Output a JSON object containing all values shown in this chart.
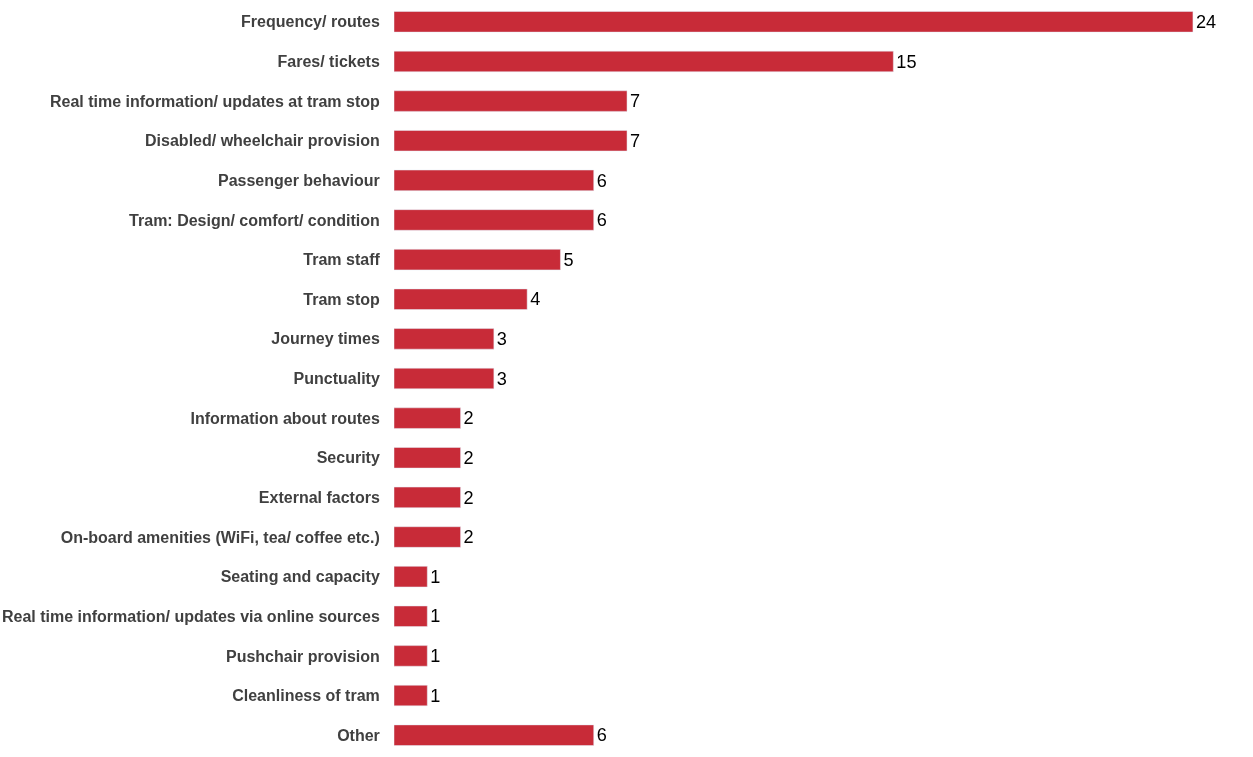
{
  "chart_data": {
    "type": "bar",
    "orientation": "horizontal",
    "categories": [
      "Frequency/ routes",
      "Fares/ tickets",
      "Real time information/ updates at tram stop",
      "Disabled/ wheelchair provision",
      "Passenger behaviour",
      "Tram: Design/ comfort/ condition",
      "Tram staff",
      "Tram stop",
      "Journey times",
      "Punctuality",
      "Information about routes",
      "Security",
      "External factors",
      "On-board amenities (WiFi, tea/ coffee etc.)",
      "Seating and capacity",
      "Real time information/ updates via online sources",
      "Pushchair provision",
      "Cleanliness of tram",
      "Other"
    ],
    "values": [
      24,
      15,
      7,
      7,
      6,
      6,
      5,
      4,
      3,
      3,
      2,
      2,
      2,
      2,
      1,
      1,
      1,
      1,
      6
    ],
    "color": "#c82b38",
    "data_labels": true,
    "tick_labels": "y"
  }
}
